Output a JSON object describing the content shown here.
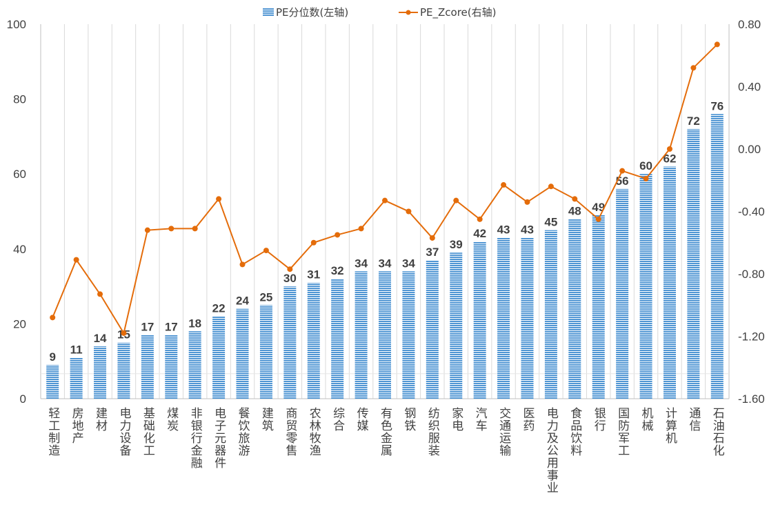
{
  "chart_data": {
    "type": "bar",
    "categories": [
      "轻工制造",
      "房地产",
      "建材",
      "电力设备",
      "基础化工",
      "煤炭",
      "非银行金融",
      "电子元器件",
      "餐饮旅游",
      "建筑",
      "商贸零售",
      "农林牧渔",
      "综合",
      "传媒",
      "有色金属",
      "钢铁",
      "纺织服装",
      "家电",
      "汽车",
      "交通运输",
      "医药",
      "电力及公用事业",
      "食品饮料",
      "银行",
      "国防军工",
      "机械",
      "计算机",
      "通信",
      "石油石化"
    ],
    "series": [
      {
        "name": "PE分位数(左轴)",
        "type": "bar",
        "axis": "left",
        "color": "#5B9BD5",
        "values": [
          9,
          11,
          14,
          15,
          17,
          17,
          18,
          22,
          24,
          25,
          30,
          31,
          32,
          34,
          34,
          34,
          37,
          39,
          42,
          43,
          43,
          45,
          48,
          49,
          56,
          60,
          62,
          72,
          76
        ],
        "data_labels": [
          "9",
          "11",
          "14",
          "15",
          "17",
          "17",
          "18",
          "22",
          "24",
          "25",
          "30",
          "31",
          "32",
          "34",
          "34",
          "34",
          "37",
          "39",
          "42",
          "43",
          "43",
          "45",
          "48",
          "49",
          "56",
          "60",
          "62",
          "72",
          "76"
        ]
      },
      {
        "name": "PE_Zcore(右轴)",
        "type": "line",
        "axis": "right",
        "color": "#E46C0A",
        "values": [
          -1.08,
          -0.71,
          -0.93,
          -1.18,
          -0.52,
          -0.51,
          -0.51,
          -0.32,
          -0.74,
          -0.65,
          -0.77,
          -0.6,
          -0.55,
          -0.51,
          -0.33,
          -0.4,
          -0.57,
          -0.33,
          -0.45,
          -0.23,
          -0.34,
          -0.24,
          -0.32,
          -0.45,
          -0.14,
          -0.19,
          0.0,
          0.52,
          0.67
        ]
      }
    ],
    "left_axis": {
      "min": 0,
      "max": 100,
      "ticks": [
        "0",
        "20",
        "40",
        "60",
        "80",
        "100"
      ]
    },
    "right_axis": {
      "min": -1.6,
      "max": 0.8,
      "ticks": [
        "-1.60",
        "-1.20",
        "-0.80",
        "-0.40",
        "0.00",
        "0.40",
        "0.80"
      ]
    },
    "legend": {
      "position": "top",
      "items": [
        "PE分位数(左轴)",
        "PE_Zcore(右轴)"
      ]
    },
    "grid": false,
    "title": "",
    "xlabel": "",
    "ylabel": ""
  }
}
